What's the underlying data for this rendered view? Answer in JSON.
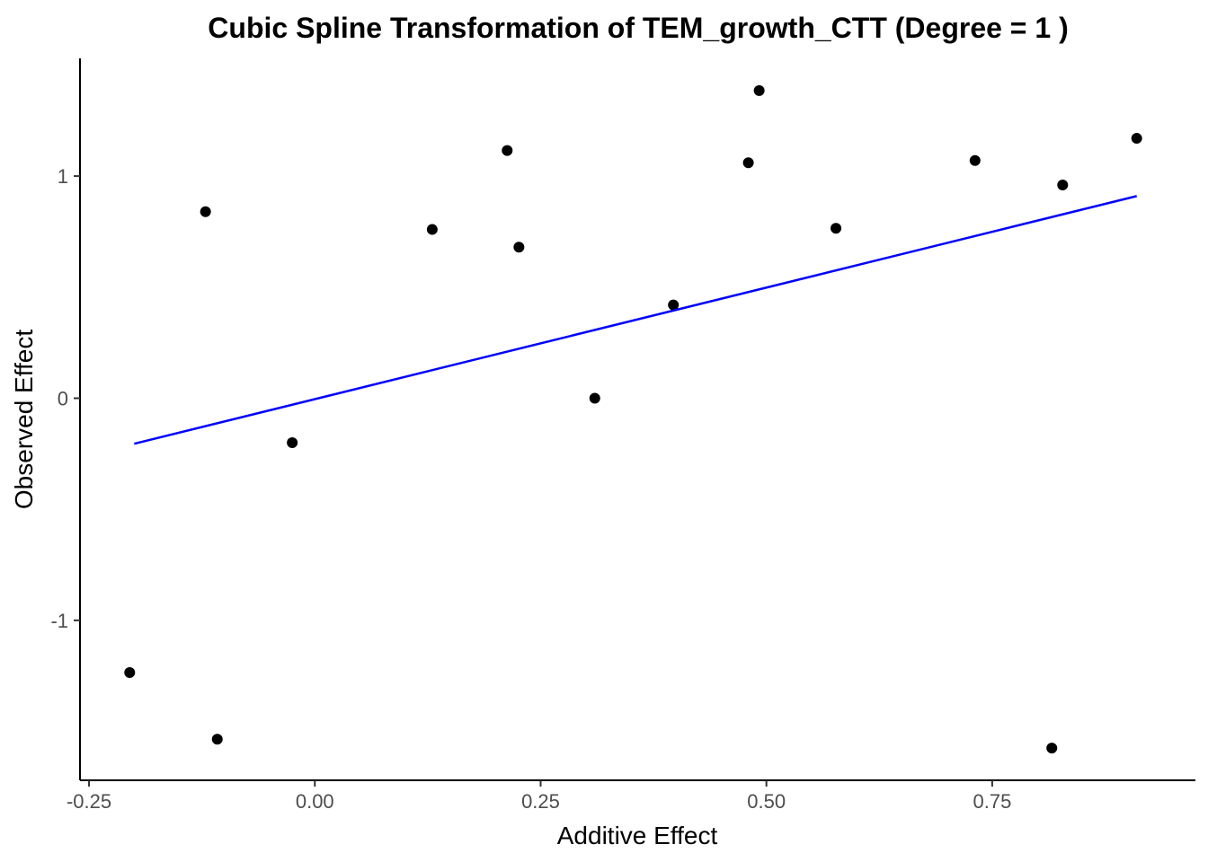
{
  "chart_data": {
    "type": "scatter",
    "title": "Cubic Spline Transformation of TEM_growth_CTT (Degree = 1 )",
    "xlabel": "Additive Effect",
    "ylabel": "Observed Effect",
    "xlim": [
      -0.26,
      0.975
    ],
    "ylim": [
      -1.72,
      1.53
    ],
    "x_ticks": [
      -0.25,
      0,
      0.25,
      0.5,
      0.75
    ],
    "x_tick_labels": [
      "-0.25",
      "0.00",
      "0.25",
      "0.50",
      "0.75"
    ],
    "y_ticks": [
      -1,
      0,
      1
    ],
    "y_tick_labels": [
      "-1",
      "0",
      "1"
    ],
    "grid": false,
    "point_color": "#000000",
    "line_color": "#0000ff",
    "points": [
      {
        "x": -0.205,
        "y": -1.235
      },
      {
        "x": -0.121,
        "y": 0.84
      },
      {
        "x": -0.108,
        "y": -1.535
      },
      {
        "x": -0.025,
        "y": -0.2
      },
      {
        "x": 0.13,
        "y": 0.76
      },
      {
        "x": 0.213,
        "y": 1.115
      },
      {
        "x": 0.226,
        "y": 0.68
      },
      {
        "x": 0.31,
        "y": 0.0
      },
      {
        "x": 0.397,
        "y": 0.42
      },
      {
        "x": 0.48,
        "y": 1.06
      },
      {
        "x": 0.492,
        "y": 1.385
      },
      {
        "x": 0.577,
        "y": 0.765
      },
      {
        "x": 0.731,
        "y": 1.07
      },
      {
        "x": 0.816,
        "y": -1.575
      },
      {
        "x": 0.828,
        "y": 0.96
      },
      {
        "x": 0.91,
        "y": 1.17
      }
    ],
    "fit_line": {
      "x": [
        -0.2,
        0.91
      ],
      "y": [
        -0.205,
        0.91
      ]
    }
  }
}
